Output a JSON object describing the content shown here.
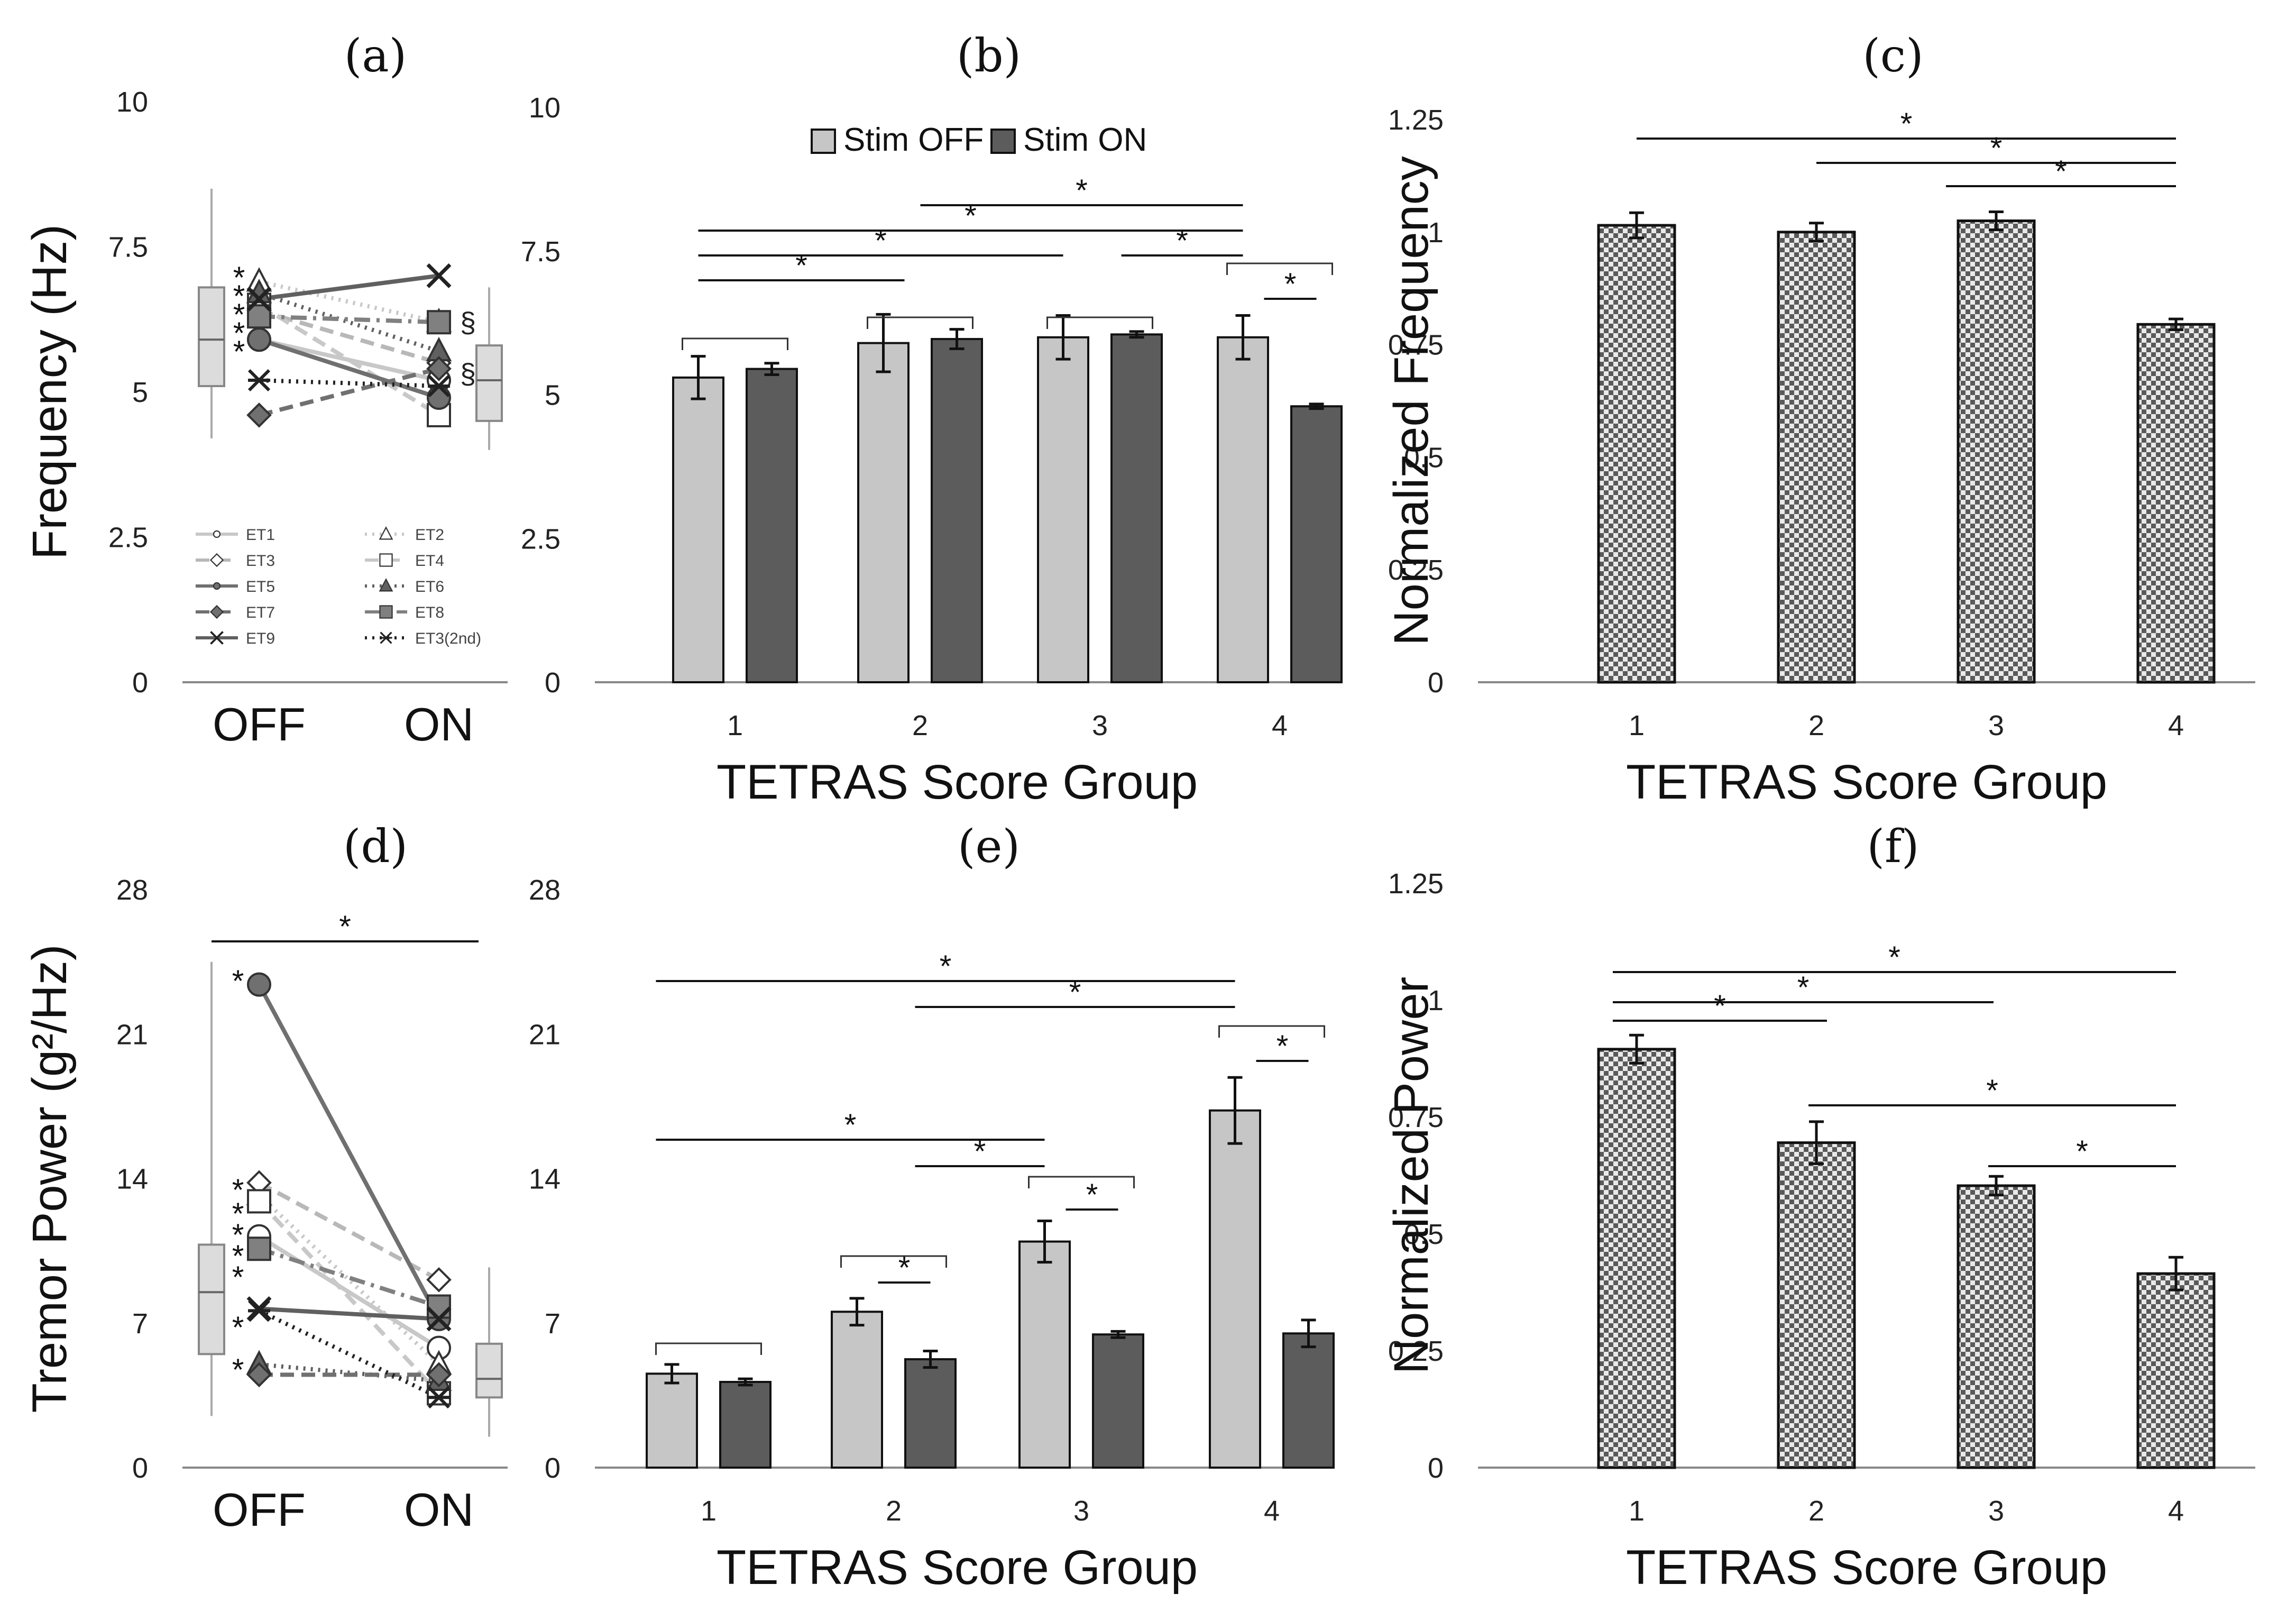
{
  "chart_data": [
    {
      "id": "a",
      "type": "line",
      "title": "(a)",
      "ylabel": "Frequency (Hz)",
      "ylim": [
        0,
        10
      ],
      "yticks": [
        "0",
        "2.5",
        "5",
        "7.5",
        "10"
      ],
      "yticks_values": [
        0,
        2.5,
        5,
        7.5,
        10
      ],
      "categories": [
        "OFF",
        "ON"
      ],
      "boxplots": [
        {
          "name": "OFF",
          "min": 4.2,
          "q1": 5.1,
          "median": 5.9,
          "q3": 6.8,
          "max": 8.5
        },
        {
          "name": "ON",
          "min": 4.0,
          "q1": 4.5,
          "median": 5.2,
          "q3": 5.8,
          "max": 6.8
        }
      ],
      "series": [
        {
          "name": "ET1",
          "marker": "circle-open",
          "style": "solid",
          "color": "#c8c8c8",
          "values": [
            5.9,
            5.2
          ]
        },
        {
          "name": "ET2",
          "marker": "triangle-open",
          "style": "dotted",
          "color": "#c8c8c8",
          "values": [
            6.9,
            6.2
          ]
        },
        {
          "name": "ET3",
          "marker": "diamond-open",
          "style": "dashed",
          "color": "#b8b8b8",
          "values": [
            6.4,
            5.5
          ]
        },
        {
          "name": "ET4",
          "marker": "square-open",
          "style": "dashed",
          "color": "#c8c8c8",
          "values": [
            6.5,
            4.6
          ]
        },
        {
          "name": "ET5",
          "marker": "circle-filled",
          "style": "solid",
          "color": "#707070",
          "values": [
            5.9,
            4.9
          ]
        },
        {
          "name": "ET6",
          "marker": "triangle-filled",
          "style": "dotted",
          "color": "#606060",
          "values": [
            6.7,
            5.7
          ]
        },
        {
          "name": "ET7",
          "marker": "diamond-filled",
          "style": "dashed",
          "color": "#707070",
          "values": [
            4.6,
            5.4
          ]
        },
        {
          "name": "ET8",
          "marker": "square-filled",
          "style": "dashdot",
          "color": "#808080",
          "values": [
            6.3,
            6.2
          ]
        },
        {
          "name": "ET9",
          "marker": "x",
          "style": "solid",
          "color": "#606060",
          "values": [
            6.6,
            7.0
          ]
        },
        {
          "name": "ET3(2nd)",
          "marker": "asterisk",
          "style": "dotted",
          "color": "#222222",
          "values": [
            5.2,
            5.1
          ]
        }
      ],
      "annotations": [
        "*",
        "*",
        "*",
        "*",
        "*",
        "§",
        "§"
      ]
    },
    {
      "id": "b",
      "type": "bar",
      "title": "(b)",
      "xlabel": "TETRAS Score Group",
      "ylim": [
        0,
        10
      ],
      "yticks": [
        "0",
        "2.5",
        "5",
        "7.5",
        "10"
      ],
      "yticks_values": [
        0,
        2.5,
        5,
        7.5,
        10
      ],
      "categories": [
        "1",
        "2",
        "3",
        "4"
      ],
      "series": [
        {
          "name": "Stim OFF",
          "color": "#c6c6c6",
          "values": [
            5.3,
            5.9,
            6.0,
            6.0
          ],
          "errors": [
            0.37,
            0.5,
            0.38,
            0.38
          ]
        },
        {
          "name": "Stim ON",
          "color": "#5c5c5c",
          "values": [
            5.45,
            5.97,
            6.05,
            4.8
          ],
          "errors": [
            0.1,
            0.17,
            0.05,
            0.04
          ]
        }
      ],
      "significance": [
        {
          "from": "1-OFF",
          "to": "2-OFF",
          "label": "*"
        },
        {
          "from": "1-OFF",
          "to": "3-OFF",
          "label": "*"
        },
        {
          "from": "1-OFF",
          "to": "4-OFF",
          "label": "*"
        },
        {
          "from": "2-OFF",
          "to": "4-OFF",
          "label": "*"
        },
        {
          "from": "3-OFF",
          "to": "4-OFF",
          "label": "*"
        },
        {
          "from": "4-OFF",
          "to": "4-ON",
          "label": "*"
        }
      ]
    },
    {
      "id": "c",
      "type": "bar",
      "title": "(c)",
      "xlabel": "TETRAS Score Group",
      "ylabel": "Normalized Frequency",
      "ylim": [
        0,
        1.25
      ],
      "yticks": [
        "0",
        "0.25",
        "0.5",
        "0.75",
        "1",
        "1.25"
      ],
      "yticks_values": [
        0,
        0.25,
        0.5,
        0.75,
        1.0,
        1.25
      ],
      "categories": [
        "1",
        "2",
        "3",
        "4"
      ],
      "series": [
        {
          "name": "Normalized Frequency",
          "values": [
            1.015,
            1.0,
            1.025,
            0.795
          ],
          "errors": [
            0.028,
            0.02,
            0.02,
            0.012
          ]
        }
      ],
      "significance": [
        {
          "from": "1",
          "to": "4",
          "label": "*"
        },
        {
          "from": "2",
          "to": "4",
          "label": "*"
        },
        {
          "from": "3",
          "to": "4",
          "label": "*"
        }
      ]
    },
    {
      "id": "d",
      "type": "line",
      "title": "(d)",
      "ylabel": "Tremor Power (g²/Hz)",
      "ylim": [
        0,
        28
      ],
      "yticks": [
        "0",
        "7",
        "14",
        "21",
        "28"
      ],
      "yticks_values": [
        0,
        7,
        14,
        21,
        28
      ],
      "categories": [
        "OFF",
        "ON"
      ],
      "boxplots": [
        {
          "name": "OFF",
          "min": 2.5,
          "q1": 5.5,
          "median": 8.5,
          "q3": 10.8,
          "max": 24.5
        },
        {
          "name": "ON",
          "min": 1.5,
          "q1": 3.4,
          "median": 4.3,
          "q3": 6.0,
          "max": 9.7
        }
      ],
      "series": [
        {
          "name": "ET1",
          "marker": "circle-open",
          "style": "solid",
          "color": "#c8c8c8",
          "values": [
            11.2,
            5.8
          ]
        },
        {
          "name": "ET2",
          "marker": "triangle-open",
          "style": "dotted",
          "color": "#c8c8c8",
          "values": [
            13.2,
            5.0
          ]
        },
        {
          "name": "ET3",
          "marker": "diamond-open",
          "style": "dashed",
          "color": "#b8b8b8",
          "values": [
            13.8,
            9.1
          ]
        },
        {
          "name": "ET4",
          "marker": "square-open",
          "style": "dashed",
          "color": "#c8c8c8",
          "values": [
            12.9,
            3.6
          ]
        },
        {
          "name": "ET5",
          "marker": "circle-filled",
          "style": "solid",
          "color": "#707070",
          "values": [
            23.4,
            7.2
          ]
        },
        {
          "name": "ET6",
          "marker": "triangle-filled",
          "style": "dotted",
          "color": "#606060",
          "values": [
            5.0,
            4.2
          ]
        },
        {
          "name": "ET7",
          "marker": "diamond-filled",
          "style": "dashed",
          "color": "#707070",
          "values": [
            4.5,
            4.5
          ]
        },
        {
          "name": "ET8",
          "marker": "square-filled",
          "style": "dashdot",
          "color": "#808080",
          "values": [
            10.6,
            7.8
          ]
        },
        {
          "name": "ET9",
          "marker": "x",
          "style": "solid",
          "color": "#606060",
          "values": [
            7.7,
            7.2
          ]
        },
        {
          "name": "ET3(2nd)",
          "marker": "asterisk",
          "style": "dotted",
          "color": "#222222",
          "values": [
            7.6,
            3.4
          ]
        }
      ],
      "annotations": [
        "*",
        "*",
        "*",
        "*",
        "*",
        "*",
        "*",
        "*"
      ]
    },
    {
      "id": "e",
      "type": "bar",
      "title": "(e)",
      "xlabel": "TETRAS Score Group",
      "ylim": [
        0,
        28
      ],
      "yticks": [
        "0",
        "7",
        "14",
        "21",
        "28"
      ],
      "yticks_values": [
        0,
        7,
        14,
        21,
        28
      ],
      "categories": [
        "1",
        "2",
        "3",
        "4"
      ],
      "series": [
        {
          "name": "Stim OFF",
          "color": "#c6c6c6",
          "values": [
            4.55,
            7.55,
            10.95,
            17.3
          ],
          "errors": [
            0.45,
            0.65,
            1.0,
            1.6
          ]
        },
        {
          "name": "Stim ON",
          "color": "#5c5c5c",
          "values": [
            4.15,
            5.25,
            6.45,
            6.5
          ],
          "errors": [
            0.15,
            0.4,
            0.15,
            0.65
          ]
        }
      ],
      "significance": [
        {
          "from": "1-OFF",
          "to": "4-OFF",
          "label": "*"
        },
        {
          "from": "2-OFF",
          "to": "4-OFF",
          "label": "*"
        },
        {
          "from": "1-OFF",
          "to": "3-OFF",
          "label": "*"
        },
        {
          "from": "2-OFF",
          "to": "3-OFF",
          "label": "*"
        },
        {
          "from": "2-OFF",
          "to": "2-ON",
          "label": "*"
        },
        {
          "from": "3-OFF",
          "to": "3-ON",
          "label": "*"
        },
        {
          "from": "4-OFF",
          "to": "4-ON",
          "label": "*"
        }
      ]
    },
    {
      "id": "f",
      "type": "bar",
      "title": "(f)",
      "xlabel": "TETRAS Score Group",
      "ylabel": "Normalized Power",
      "ylim": [
        0,
        1.25
      ],
      "yticks": [
        "0",
        "0.25",
        "0.5",
        "0.75",
        "1",
        "1.25"
      ],
      "yticks_values": [
        0,
        0.25,
        0.5,
        0.75,
        1.0,
        1.25
      ],
      "categories": [
        "1",
        "2",
        "3",
        "4"
      ],
      "series": [
        {
          "name": "Normalized Power",
          "values": [
            0.895,
            0.695,
            0.603,
            0.415
          ],
          "errors": [
            0.03,
            0.045,
            0.02,
            0.035
          ]
        }
      ],
      "significance": [
        {
          "from": "1",
          "to": "2",
          "label": "*"
        },
        {
          "from": "1",
          "to": "3",
          "label": "*"
        },
        {
          "from": "1",
          "to": "4",
          "label": "*"
        },
        {
          "from": "2",
          "to": "4",
          "label": "*"
        },
        {
          "from": "3",
          "to": "4",
          "label": "*"
        }
      ]
    }
  ],
  "legend": {
    "stim_off": "Stim OFF",
    "stim_on": "Stim ON",
    "stim_off_color": "#c6c6c6",
    "stim_on_color": "#5c5c5c"
  },
  "hatch_color": "#5a5a5a"
}
